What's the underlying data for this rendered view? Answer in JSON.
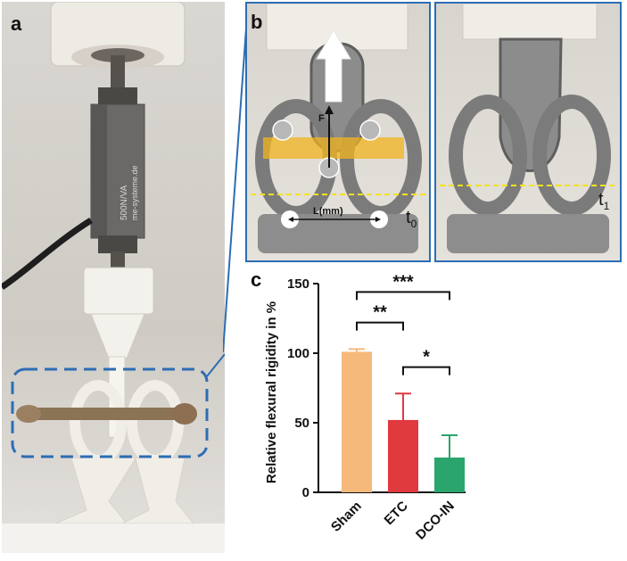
{
  "panels": {
    "a": "a",
    "b": "b",
    "c": "c"
  },
  "photo_b": {
    "force_label": "F",
    "length_label": "L(mm)",
    "t0_base": "t",
    "t0_sub": "0",
    "t1_base": "t",
    "t1_sub": "1"
  },
  "photo_a": {
    "sensor_text_1": "500N/VA",
    "sensor_text_2": "me-systeme.de"
  },
  "colors": {
    "sham": "#f4b97b",
    "etc": "#e0393e",
    "dco_in": "#2aa56b",
    "frame": "#2d6db3",
    "dash_yellow": "#f5e21c"
  },
  "chart_data": {
    "type": "bar",
    "categories": [
      "Sham",
      "ETC",
      "DCO-IN"
    ],
    "values": [
      101,
      52,
      25
    ],
    "errors": [
      2,
      19,
      16
    ],
    "ylabel": "Relative flexural rigidity in %",
    "ylim": [
      0,
      150
    ],
    "yticks": [
      "0",
      "50",
      "100",
      "150"
    ],
    "significance": [
      {
        "from": 0,
        "to": 2,
        "label": "***"
      },
      {
        "from": 0,
        "to": 1,
        "label": "**"
      },
      {
        "from": 1,
        "to": 2,
        "label": "*"
      }
    ]
  }
}
